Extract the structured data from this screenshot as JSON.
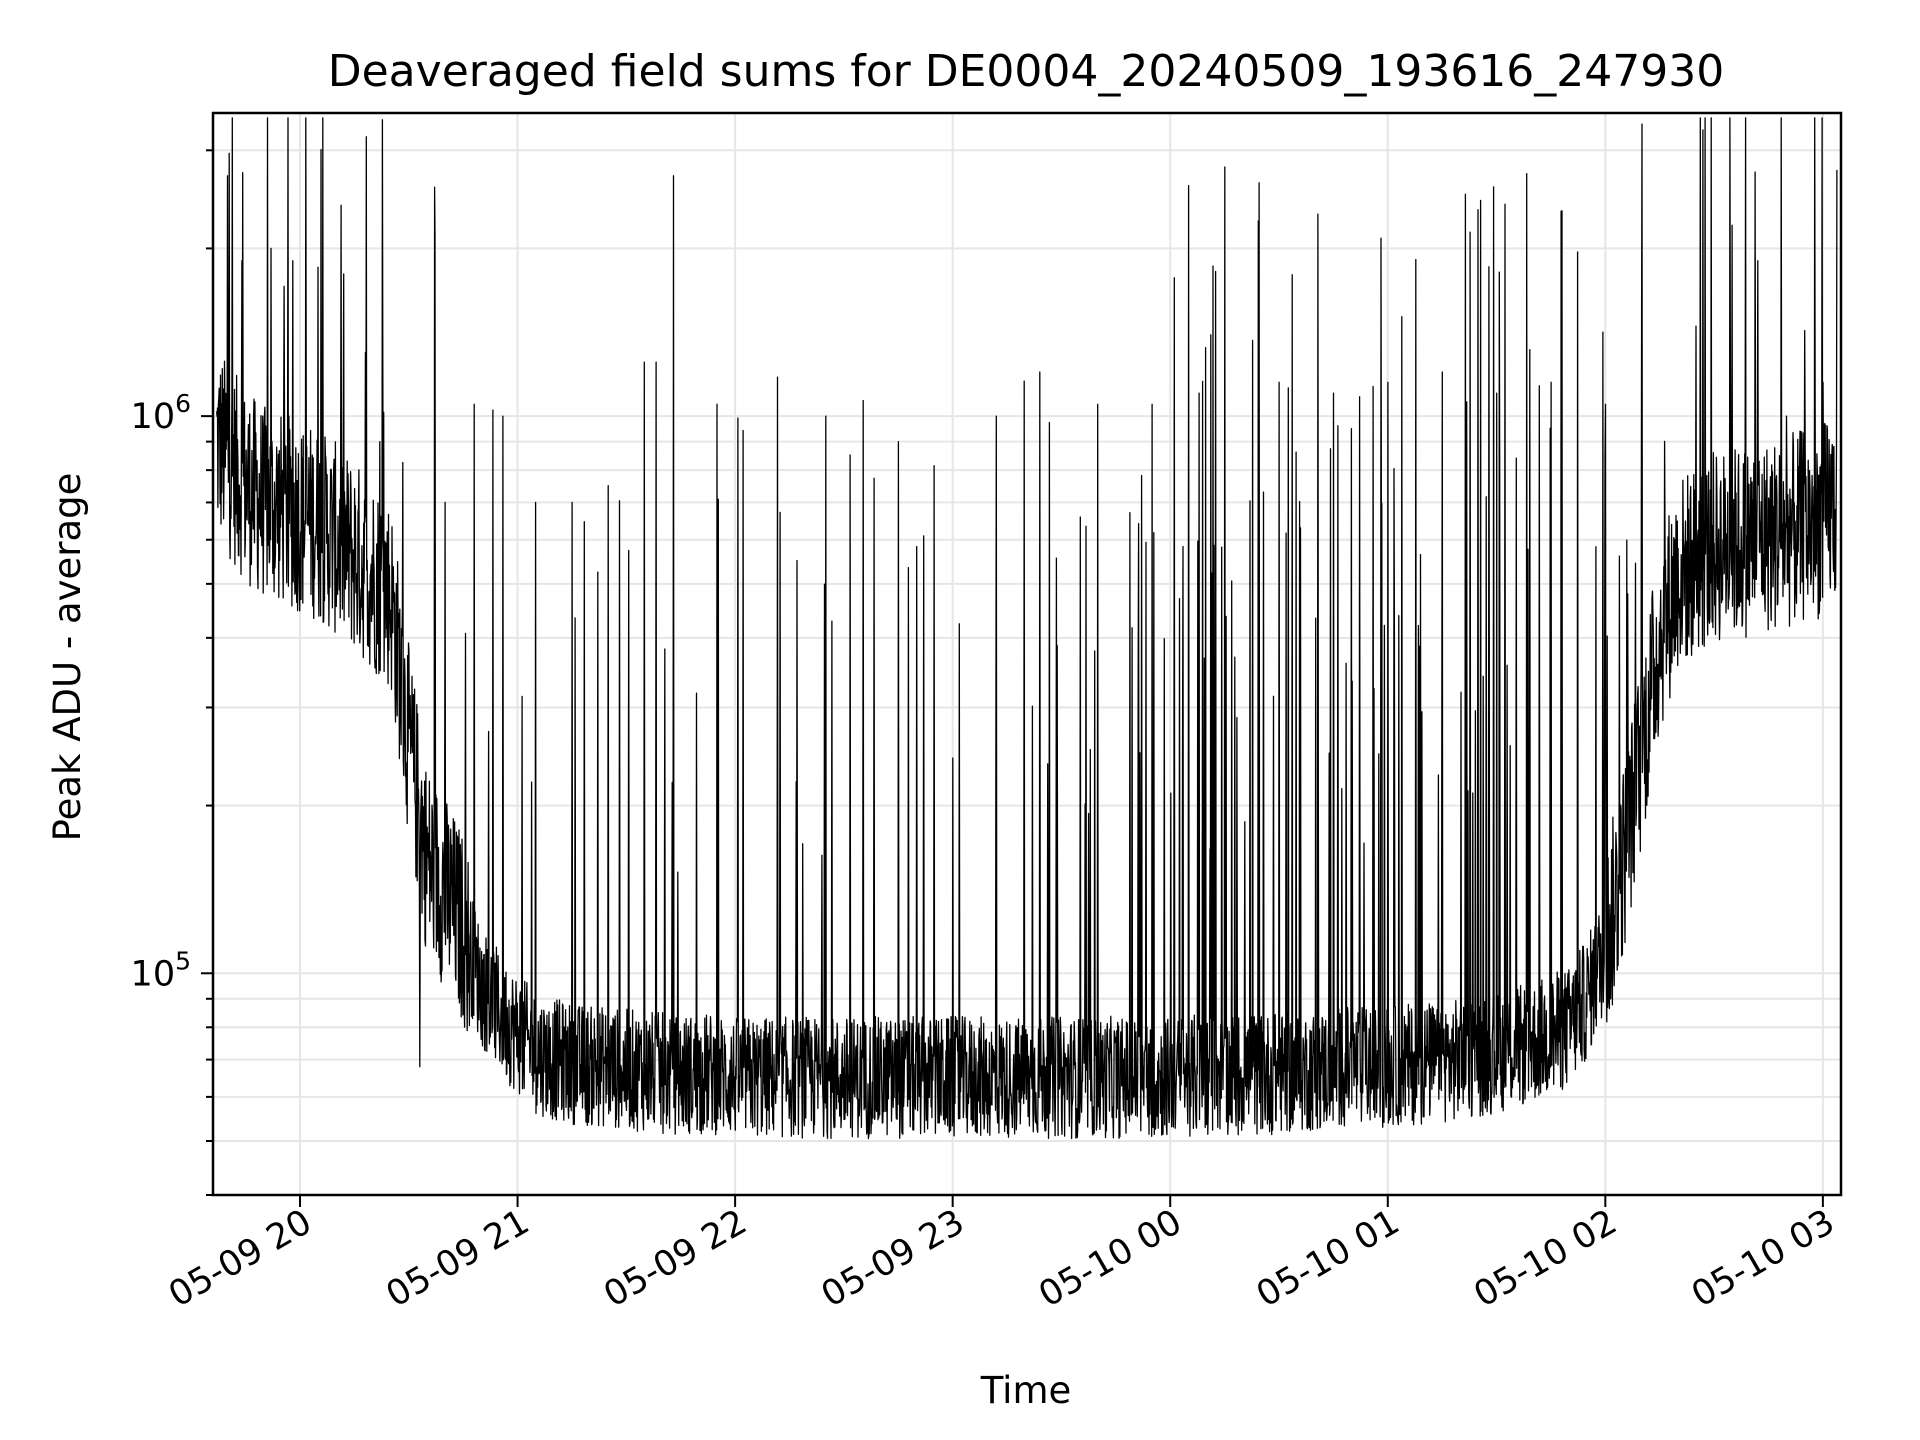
{
  "chart_data": {
    "type": "line",
    "title": "Deaveraged field sums for DE0004_20240509_193616_247930",
    "xlabel": "Time",
    "ylabel": "Peak ADU - average",
    "y_scale": "log",
    "xlim": [
      "2024-05-09 19:36",
      "2024-05-10 03:05"
    ],
    "ylim": [
      40000,
      3500000
    ],
    "grid": true,
    "x_ticks": [
      {
        "at": "2024-05-09 20:00",
        "label": "05-09 20"
      },
      {
        "at": "2024-05-09 21:00",
        "label": "05-09 21"
      },
      {
        "at": "2024-05-09 22:00",
        "label": "05-09 22"
      },
      {
        "at": "2024-05-09 23:00",
        "label": "05-09 23"
      },
      {
        "at": "2024-05-10 00:00",
        "label": "05-10 00"
      },
      {
        "at": "2024-05-10 01:00",
        "label": "05-10 01"
      },
      {
        "at": "2024-05-10 02:00",
        "label": "05-10 02"
      },
      {
        "at": "2024-05-10 03:00",
        "label": "05-10 03"
      }
    ],
    "y_ticks": [
      {
        "at": 100000,
        "base": "10",
        "exp": "5"
      },
      {
        "at": 1000000,
        "base": "10",
        "exp": "6"
      }
    ],
    "series": [
      {
        "color": "#000000",
        "x": [
          "2024-05-09 19:37",
          "2024-05-09 19:45",
          "2024-05-09 19:50",
          "2024-05-09 19:55",
          "2024-05-09 20:00",
          "2024-05-09 20:05",
          "2024-05-09 20:10",
          "2024-05-09 20:15",
          "2024-05-09 20:20",
          "2024-05-09 20:25",
          "2024-05-09 20:30",
          "2024-05-09 20:35",
          "2024-05-09 20:40",
          "2024-05-09 20:45",
          "2024-05-09 20:50",
          "2024-05-09 20:55",
          "2024-05-09 21:00",
          "2024-05-09 21:05",
          "2024-05-09 21:10",
          "2024-05-09 21:15",
          "2024-05-09 21:20",
          "2024-05-09 21:25",
          "2024-05-09 21:30",
          "2024-05-09 21:35",
          "2024-05-09 21:40",
          "2024-05-09 21:45",
          "2024-05-09 21:50",
          "2024-05-09 21:55",
          "2024-05-09 22:00",
          "2024-05-09 22:10",
          "2024-05-09 22:20",
          "2024-05-09 22:30",
          "2024-05-09 22:40",
          "2024-05-09 22:50",
          "2024-05-09 23:00",
          "2024-05-09 23:10",
          "2024-05-09 23:20",
          "2024-05-09 23:30",
          "2024-05-09 23:40",
          "2024-05-09 23:50",
          "2024-05-10 00:00",
          "2024-05-10 00:10",
          "2024-05-10 00:20",
          "2024-05-10 00:30",
          "2024-05-10 00:40",
          "2024-05-10 00:50",
          "2024-05-10 01:00",
          "2024-05-10 01:10",
          "2024-05-10 01:20",
          "2024-05-10 01:30",
          "2024-05-10 01:40",
          "2024-05-10 01:50",
          "2024-05-10 01:55",
          "2024-05-10 02:00",
          "2024-05-10 02:05",
          "2024-05-10 02:10",
          "2024-05-10 02:15",
          "2024-05-10 02:20",
          "2024-05-10 02:30",
          "2024-05-10 02:40",
          "2024-05-10 02:50",
          "2024-05-10 03:00",
          "2024-05-10 03:04"
        ],
        "y": [
          900000,
          750000,
          700000,
          680000,
          660000,
          640000,
          600000,
          560000,
          520000,
          480000,
          260000,
          160000,
          140000,
          120000,
          95000,
          85000,
          78000,
          72000,
          70000,
          69000,
          68000,
          68000,
          67000,
          67000,
          66000,
          66000,
          66000,
          66000,
          65000,
          65000,
          65000,
          65000,
          65000,
          65000,
          65000,
          65000,
          65000,
          65000,
          65000,
          65000,
          65000,
          66000,
          66000,
          66000,
          67000,
          68000,
          68000,
          69000,
          70000,
          72000,
          75000,
          80000,
          90000,
          110000,
          160000,
          250000,
          400000,
          520000,
          580000,
          600000,
          620000,
          650000,
          700000
        ]
      }
    ],
    "spikes": [
      {
        "x": "2024-05-09 19:40",
        "y": 2700000
      },
      {
        "x": "2024-05-09 19:44",
        "y": 1900000
      },
      {
        "x": "2024-05-09 19:52",
        "y": 2000000
      },
      {
        "x": "2024-05-09 19:58",
        "y": 1900000
      },
      {
        "x": "2024-05-09 20:05",
        "y": 1850000
      },
      {
        "x": "2024-05-09 20:12",
        "y": 1800000
      },
      {
        "x": "2024-05-09 20:18",
        "y": 1300000
      },
      {
        "x": "2024-05-09 20:22",
        "y": 900000
      },
      {
        "x": "2024-05-09 20:33",
        "y": 68000
      },
      {
        "x": "2024-05-09 20:40",
        "y": 700000
      },
      {
        "x": "2024-05-09 20:48",
        "y": 1050000
      },
      {
        "x": "2024-05-09 20:56",
        "y": 1000000
      },
      {
        "x": "2024-05-09 21:05",
        "y": 700000
      },
      {
        "x": "2024-05-09 21:15",
        "y": 700000
      },
      {
        "x": "2024-05-09 21:25",
        "y": 750000
      },
      {
        "x": "2024-05-09 21:35",
        "y": 1250000
      },
      {
        "x": "2024-05-09 21:43",
        "y": 2700000
      },
      {
        "x": "2024-05-09 21:55",
        "y": 1050000
      },
      {
        "x": "2024-05-09 22:25",
        "y": 1000000
      },
      {
        "x": "2024-05-09 22:45",
        "y": 900000
      },
      {
        "x": "2024-05-09 23:12",
        "y": 1000000
      },
      {
        "x": "2024-05-09 23:24",
        "y": 1200000
      },
      {
        "x": "2024-05-09 23:40",
        "y": 1050000
      },
      {
        "x": "2024-05-09 23:55",
        "y": 1050000
      },
      {
        "x": "2024-05-10 00:08",
        "y": 1100000
      },
      {
        "x": "2024-05-10 00:15",
        "y": 2800000
      },
      {
        "x": "2024-05-10 00:30",
        "y": 1150000
      },
      {
        "x": "2024-05-10 00:45",
        "y": 1100000
      },
      {
        "x": "2024-05-10 01:00",
        "y": 1150000
      },
      {
        "x": "2024-05-10 01:15",
        "y": 1200000
      },
      {
        "x": "2024-05-10 01:30",
        "y": 1100000
      },
      {
        "x": "2024-05-10 01:45",
        "y": 1150000
      },
      {
        "x": "2024-05-10 02:00",
        "y": 1050000
      },
      {
        "x": "2024-05-10 02:10",
        "y": 1500000
      },
      {
        "x": "2024-05-10 02:25",
        "y": 1450000
      },
      {
        "x": "2024-05-10 02:35",
        "y": 2200000
      },
      {
        "x": "2024-05-10 02:42",
        "y": 1900000
      },
      {
        "x": "2024-05-10 02:50",
        "y": 1000000
      },
      {
        "x": "2024-05-10 03:00",
        "y": 1150000
      }
    ]
  }
}
